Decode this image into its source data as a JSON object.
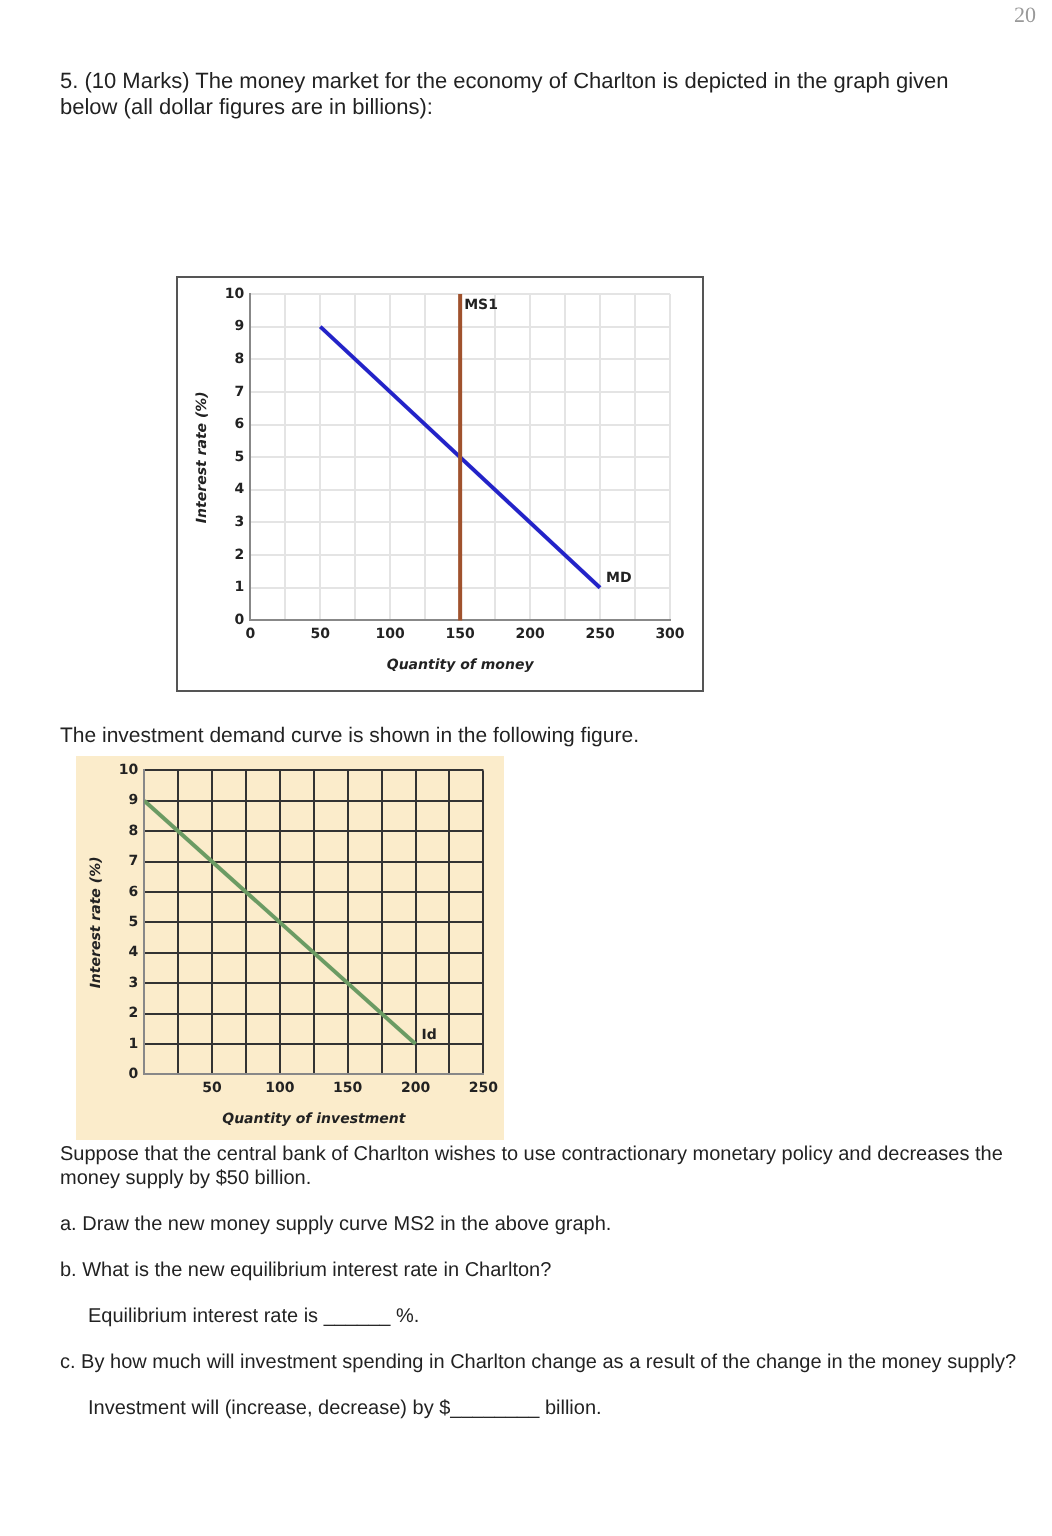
{
  "chart_data": [
    {
      "type": "line",
      "title": "5. (10 Marks) The money market for the economy of Charlton is depicted in the graph given below (all dollar figures are in billions):",
      "xlabel": "Quantity of money",
      "ylabel": "Interest rate (%)",
      "xlim": [
        0,
        300
      ],
      "xticks": [
        0,
        {
          "value": 25,
          "label": null
        },
        50,
        {
          "value": 75,
          "label": null
        },
        100,
        {
          "value": 125,
          "label": null
        },
        150,
        {
          "value": 175,
          "label": null
        },
        200,
        {
          "value": 225,
          "label": null
        },
        250,
        {
          "value": 275,
          "label": null
        },
        300
      ],
      "ylim": [
        0,
        10
      ],
      "yticks": [
        0,
        1,
        2,
        3,
        4,
        5,
        6,
        7,
        8,
        9,
        10
      ],
      "grid": true,
      "legend": false,
      "marker": "none",
      "series": [
        {
          "name": "MD",
          "color": "#2323c8",
          "x": [
            50,
            250
          ],
          "values": [
            9,
            1
          ]
        }
      ],
      "ref_lines": [
        {
          "axis": "x",
          "value": 150,
          "label": "MS1",
          "color": "#a0522d"
        }
      ],
      "annotations": [
        "20"
      ]
    },
    {
      "type": "line",
      "title": "The investment demand curve is shown in the following figure.",
      "xlabel": "Quantity of investment",
      "ylabel": "Interest rate (%)",
      "xlim": [
        0,
        250
      ],
      "xticks": [
        {
          "value": 0,
          "label": null
        },
        {
          "value": 25,
          "label": null
        },
        50,
        {
          "value": 75,
          "label": null
        },
        100,
        {
          "value": 125,
          "label": null
        },
        150,
        {
          "value": 175,
          "label": null
        },
        200,
        {
          "value": 225,
          "label": null
        },
        250
      ],
      "ylim": [
        0,
        10
      ],
      "yticks": [
        0,
        1,
        2,
        3,
        4,
        5,
        6,
        7,
        8,
        9,
        10
      ],
      "grid": true,
      "legend": false,
      "marker": "none",
      "series": [
        {
          "name": "Id",
          "color": "#6b9b63",
          "x": [
            0,
            200
          ],
          "values": [
            9,
            1
          ]
        }
      ],
      "annotations": [
        "Suppose that the central bank of Charlton wishes to use contractionary monetary policy and decreases the money supply by $50 billion.",
        "a. Draw the new money supply curve MS2 in the above graph.",
        "b. What is the new equilibrium interest rate in Charlton?",
        "Equilibrium interest rate is ______ %.",
        "c. By how much will investment spending in Charlton change as a result of the change in the money supply?",
        "Investment will (increase, decrease) by $________ billion."
      ]
    }
  ]
}
